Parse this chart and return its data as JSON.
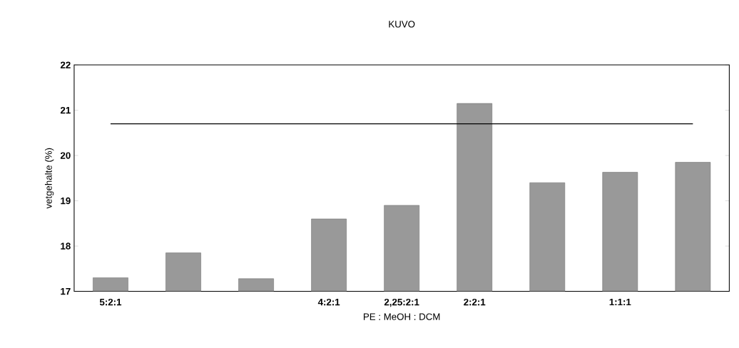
{
  "chart_data": {
    "type": "bar",
    "title": "KUVO",
    "xlabel": "PE : MeOH : DCM",
    "ylabel": "vetgehalte (%)",
    "categories": [
      "5:2:1",
      null,
      null,
      "4:2:1",
      "2,25:2:1",
      "2:2:1",
      null,
      "1:1:1",
      null
    ],
    "values": [
      17.3,
      17.85,
      17.28,
      18.6,
      18.9,
      21.15,
      19.4,
      19.63,
      19.85
    ],
    "color": "#999999",
    "ylim": [
      17,
      22
    ],
    "yticks": [
      17,
      18,
      19,
      20,
      21,
      22
    ],
    "ref_lines": [
      {
        "axis": "y",
        "value": 20.7,
        "color": "#000000"
      }
    ],
    "grid": false
  }
}
